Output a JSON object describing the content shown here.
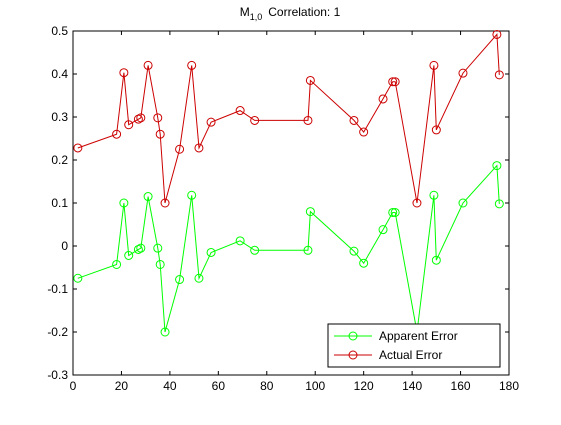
{
  "chart_data": {
    "type": "line",
    "title": {
      "main": "M",
      "subscript": "1,0",
      "suffix": "Correlation: 1"
    },
    "xlabel": "",
    "ylabel": "",
    "xlim": [
      0,
      180
    ],
    "ylim": [
      -0.3,
      0.5
    ],
    "xticks": [
      0,
      20,
      40,
      60,
      80,
      100,
      120,
      140,
      160,
      180
    ],
    "yticks": [
      -0.3,
      -0.2,
      -0.1,
      0,
      0.1,
      0.2,
      0.3,
      0.4,
      0.5
    ],
    "xtick_labels": [
      "0",
      "20",
      "40",
      "60",
      "80",
      "100",
      "120",
      "140",
      "160",
      "180"
    ],
    "ytick_labels": [
      "-0.3",
      "-0.2",
      "-0.1",
      "0",
      "0.1",
      "0.2",
      "0.3",
      "0.4",
      "0.5"
    ],
    "grid": false,
    "legend_position": "bottom-right",
    "series": [
      {
        "name": "Apparent Error",
        "color": "#00ff00",
        "marker": "circle",
        "x": [
          2,
          18,
          21,
          23,
          27,
          28,
          31,
          35,
          36,
          38,
          44,
          49,
          52,
          57,
          69,
          75,
          97,
          98,
          116,
          120,
          128,
          132,
          133,
          142,
          149,
          150,
          161,
          175,
          176
        ],
        "y": [
          -0.075,
          -0.043,
          0.1,
          -0.022,
          -0.008,
          -0.005,
          0.115,
          -0.005,
          -0.043,
          -0.2,
          -0.078,
          0.118,
          -0.075,
          -0.015,
          0.012,
          -0.01,
          -0.01,
          0.08,
          -0.012,
          -0.04,
          0.038,
          0.078,
          0.078,
          -0.2,
          0.118,
          -0.033,
          0.1,
          0.187,
          0.098
        ]
      },
      {
        "name": "Actual Error",
        "color": "#cc0000",
        "marker": "circle",
        "x": [
          2,
          18,
          21,
          23,
          27,
          28,
          31,
          35,
          36,
          38,
          44,
          49,
          52,
          57,
          69,
          75,
          97,
          98,
          116,
          120,
          128,
          132,
          133,
          142,
          149,
          150,
          161,
          175,
          176
        ],
        "y": [
          0.228,
          0.26,
          0.403,
          0.282,
          0.295,
          0.298,
          0.42,
          0.298,
          0.26,
          0.1,
          0.225,
          0.42,
          0.228,
          0.288,
          0.315,
          0.292,
          0.292,
          0.385,
          0.292,
          0.265,
          0.342,
          0.382,
          0.382,
          0.1,
          0.42,
          0.27,
          0.402,
          0.492,
          0.398
        ]
      }
    ]
  }
}
